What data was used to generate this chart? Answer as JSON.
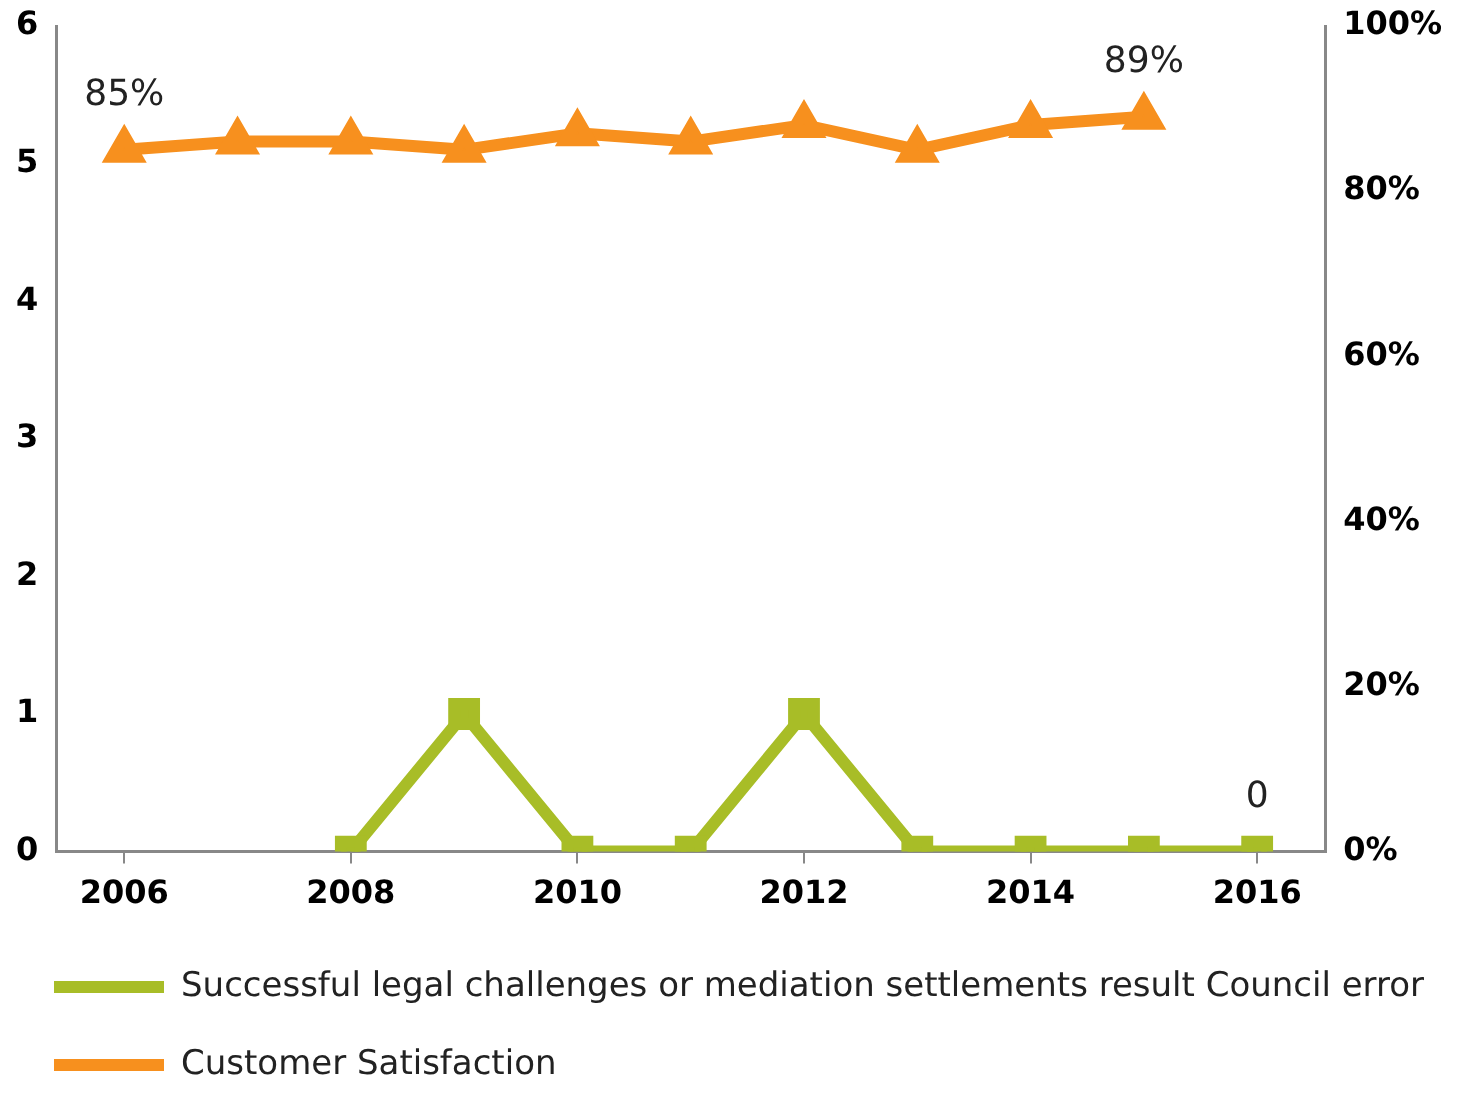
{
  "chart_data": {
    "type": "line",
    "x": [
      2006,
      2007,
      2008,
      2009,
      2010,
      2011,
      2012,
      2013,
      2014,
      2015,
      2016
    ],
    "xlim": [
      2005.4,
      2016.6
    ],
    "xticks": [
      2006,
      2008,
      2010,
      2012,
      2014,
      2016
    ],
    "ylim": [
      0,
      6
    ],
    "yticks": [
      0,
      1,
      2,
      3,
      4,
      5,
      6
    ],
    "y2lim": [
      0,
      100
    ],
    "y2ticks": [
      {
        "value": 0,
        "label": "0%"
      },
      {
        "value": 20,
        "label": "20%"
      },
      {
        "value": 40,
        "label": "40%"
      },
      {
        "value": 60,
        "label": "60%"
      },
      {
        "value": 80,
        "label": "80%"
      },
      {
        "value": 100,
        "label": "100%"
      }
    ],
    "grid": false,
    "legend": "bottom",
    "series": [
      {
        "name": "Successful legal challenges or mediation settlements result Council error",
        "color": "#a8bd27",
        "marker": "square",
        "values": [
          null,
          null,
          0,
          1,
          0,
          0,
          1,
          0,
          0,
          0,
          0
        ],
        "value_labels": [
          null,
          null,
          null,
          null,
          null,
          null,
          null,
          null,
          null,
          null,
          "0"
        ]
      },
      {
        "name": "Customer Satisfaction",
        "color": "#f7901e",
        "marker": "triangle",
        "axis": "y2",
        "values": [
          85,
          86,
          86,
          85,
          87,
          86,
          88,
          85,
          88,
          89,
          null
        ],
        "value_labels": [
          "85%",
          null,
          null,
          null,
          null,
          null,
          null,
          null,
          null,
          "89%",
          null
        ]
      }
    ]
  }
}
